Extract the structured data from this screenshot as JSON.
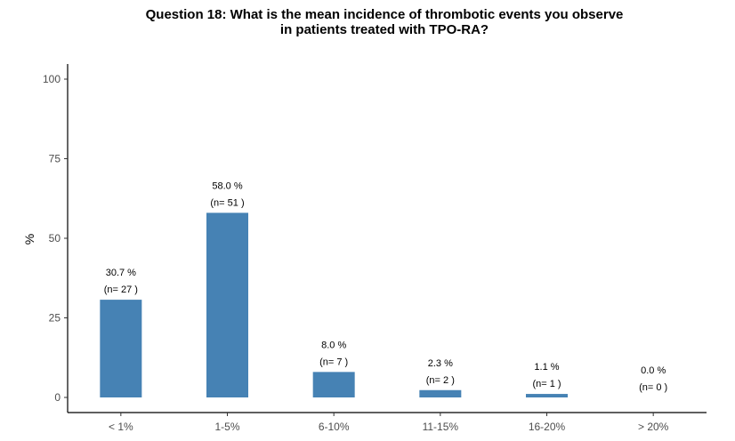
{
  "chart_data": {
    "type": "bar",
    "title": "Question 18: What is the mean incidence of thrombotic events you observe",
    "subtitle": "in patients treated with TPO-RA?",
    "xlabel": "",
    "ylabel": "%",
    "ylim": [
      0,
      100
    ],
    "yticks": [
      "0",
      "25",
      "50",
      "75",
      "100"
    ],
    "categories": [
      "< 1%",
      "1-5%",
      "6-10%",
      "11-15%",
      "16-20%",
      "> 20%"
    ],
    "values": [
      30.7,
      58.0,
      8.0,
      2.3,
      1.1,
      0.0
    ],
    "value_labels": [
      "30.7 %",
      "58.0 %",
      "8.0 %",
      "2.3 %",
      "1.1 %",
      "0.0 %"
    ],
    "count_labels": [
      "(n= 27 )",
      "(n= 51 )",
      "(n= 7 )",
      "(n= 2 )",
      "(n= 1 )",
      "(n= 0 )"
    ],
    "bar_color": "#4682b4",
    "grid": false,
    "legend": "none"
  }
}
